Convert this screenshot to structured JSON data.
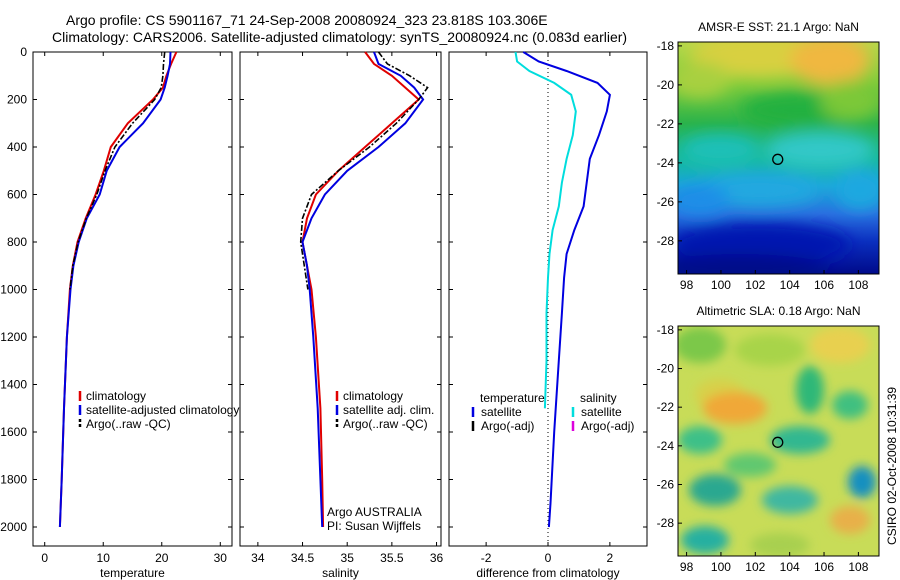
{
  "header": {
    "line1": "Argo profile: CS 5901167_71 24-Sep-2008 20080924_323 23.818S 103.306E",
    "line2": "Climatology: CARS2006. Satellite-adjusted climatology: synTS_20080924.nc (0.083d earlier)"
  },
  "footer": {
    "stamp": "CSIRO 02-Oct-2008 10:31:39"
  },
  "colors": {
    "red": "#e00000",
    "blue": "#0000e0",
    "black": "#000000",
    "cyan": "#00dddd",
    "magenta": "#dd00dd"
  },
  "chart_data": [
    {
      "type": "line",
      "xlabel": "temperature",
      "xlim": [
        -2,
        32
      ],
      "xticks": [
        0,
        10,
        20,
        30
      ],
      "ylim": [
        0,
        2080
      ],
      "yreversed": true,
      "yticks": [
        0,
        200,
        400,
        600,
        800,
        1000,
        1200,
        1400,
        1600,
        1800,
        2000
      ],
      "legend": [
        "climatology",
        "satellite-adjusted climatology",
        "Argo(..raw -QC)"
      ],
      "series": [
        {
          "name": "climatology",
          "color": "red",
          "depth": [
            0,
            50,
            100,
            150,
            200,
            300,
            400,
            500,
            600,
            700,
            800,
            900,
            1000,
            1200,
            1500,
            1800,
            2000
          ],
          "values": [
            22.5,
            21.6,
            20.8,
            20.2,
            18.5,
            14.2,
            11.3,
            10.1,
            8.7,
            7.0,
            5.6,
            4.8,
            4.3,
            3.8,
            3.3,
            2.9,
            2.6
          ]
        },
        {
          "name": "satellite-adjusted climatology",
          "color": "blue",
          "depth": [
            0,
            50,
            100,
            150,
            200,
            300,
            400,
            500,
            600,
            700,
            800,
            900,
            1000,
            1200,
            1500,
            1800,
            2000
          ],
          "values": [
            21.5,
            21.4,
            21.0,
            20.5,
            19.8,
            16.8,
            12.8,
            10.6,
            9.4,
            7.2,
            5.8,
            4.9,
            4.4,
            3.8,
            3.3,
            2.9,
            2.6
          ]
        },
        {
          "name": "Argo(..raw -QC)",
          "color": "black",
          "depth": [
            0,
            50,
            100,
            150,
            200,
            300,
            400,
            500,
            600,
            700,
            800,
            900,
            1000
          ],
          "values": [
            20.5,
            20.3,
            20.2,
            19.9,
            18.8,
            15.0,
            12.0,
            10.3,
            8.9,
            7.1,
            5.7,
            4.8,
            4.3
          ]
        }
      ]
    },
    {
      "type": "line",
      "xlabel": "salinity",
      "xlim": [
        33.8,
        36.05
      ],
      "xticks": [
        34,
        34.5,
        35,
        35.5,
        36
      ],
      "ylim": [
        0,
        2080
      ],
      "yreversed": true,
      "legend": [
        "climatology",
        "satellite adj. clim.",
        "Argo(..raw -QC)"
      ],
      "annotation": [
        "Argo AUSTRALIA",
        "PI: Susan Wijffels"
      ],
      "series": [
        {
          "name": "climatology",
          "color": "red",
          "depth": [
            0,
            50,
            100,
            150,
            200,
            300,
            400,
            500,
            600,
            700,
            800,
            900,
            1000,
            1200,
            1500,
            1800,
            2000
          ],
          "values": [
            35.2,
            35.3,
            35.5,
            35.65,
            35.8,
            35.5,
            35.2,
            34.9,
            34.65,
            34.55,
            34.5,
            34.55,
            34.6,
            34.65,
            34.7,
            34.72,
            34.73
          ]
        },
        {
          "name": "satellite adj. clim.",
          "color": "blue",
          "depth": [
            0,
            50,
            100,
            150,
            200,
            300,
            400,
            500,
            600,
            700,
            800,
            900,
            1000,
            1200,
            1500,
            1800,
            2000
          ],
          "values": [
            35.3,
            35.35,
            35.6,
            35.75,
            35.85,
            35.65,
            35.35,
            35.0,
            34.75,
            34.6,
            34.5,
            34.55,
            34.58,
            34.62,
            34.67,
            34.7,
            34.72
          ]
        },
        {
          "name": "Argo(..raw -QC)",
          "color": "black",
          "depth": [
            0,
            50,
            100,
            150,
            200,
            300,
            400,
            500,
            600,
            700,
            800,
            900,
            1000
          ],
          "values": [
            35.35,
            35.45,
            35.7,
            35.9,
            35.8,
            35.55,
            35.25,
            34.9,
            34.6,
            34.5,
            34.48,
            34.52,
            34.56
          ]
        }
      ]
    },
    {
      "type": "line",
      "xlabel": "difference from climatology",
      "xlim": [
        -3.2,
        3.2
      ],
      "xticks": [
        -2,
        0,
        2
      ],
      "ylim": [
        0,
        2080
      ],
      "yreversed": true,
      "legend_temperature": {
        "title": "temperature",
        "items": [
          "satellite",
          "Argo(-adj)"
        ]
      },
      "legend_salinity": {
        "title": "salinity",
        "items": [
          "satellite",
          "Argo(-adj)"
        ]
      },
      "series": [
        {
          "name": "satellite",
          "group": "temperature",
          "color": "blue",
          "depth": [
            0,
            40,
            80,
            130,
            180,
            250,
            350,
            450,
            550,
            650,
            750,
            850,
            950,
            1100,
            1300,
            1600,
            1900,
            2000
          ],
          "values": [
            -0.8,
            -0.3,
            0.6,
            1.6,
            2.0,
            1.9,
            1.65,
            1.35,
            1.25,
            1.15,
            0.85,
            0.6,
            0.52,
            0.45,
            0.35,
            0.2,
            0.08,
            0.03
          ]
        },
        {
          "name": "satellite",
          "group": "salinity",
          "color": "cyan",
          "depth": [
            0,
            40,
            80,
            130,
            180,
            250,
            350,
            450,
            550,
            650,
            750,
            850,
            950,
            1100,
            1300,
            1500
          ],
          "values": [
            -1.05,
            -1.0,
            -0.6,
            0.2,
            0.75,
            0.9,
            0.8,
            0.6,
            0.45,
            0.35,
            0.15,
            0.05,
            0.0,
            -0.05,
            -0.05,
            -0.1
          ]
        }
      ],
      "zero_line": 0
    },
    {
      "type": "heatmap",
      "title": "AMSR-E SST: 21.1 Argo: NaN",
      "xlim": [
        97.5,
        109.2
      ],
      "xticks": [
        98,
        100,
        102,
        104,
        106,
        108
      ],
      "ylim": [
        -29.7,
        -17.8
      ],
      "yticks": [
        -18,
        -20,
        -22,
        -24,
        -26,
        -28
      ],
      "marker": {
        "lon": 103.306,
        "lat": -23.818
      }
    },
    {
      "type": "heatmap",
      "title": "Altimetric SLA: 0.18 Argo: NaN",
      "xlim": [
        97.5,
        109.2
      ],
      "xticks": [
        98,
        100,
        102,
        104,
        106,
        108
      ],
      "ylim": [
        -29.7,
        -17.8
      ],
      "yticks": [
        -18,
        -20,
        -22,
        -24,
        -26,
        -28
      ],
      "marker": {
        "lon": 103.306,
        "lat": -23.818
      }
    }
  ]
}
